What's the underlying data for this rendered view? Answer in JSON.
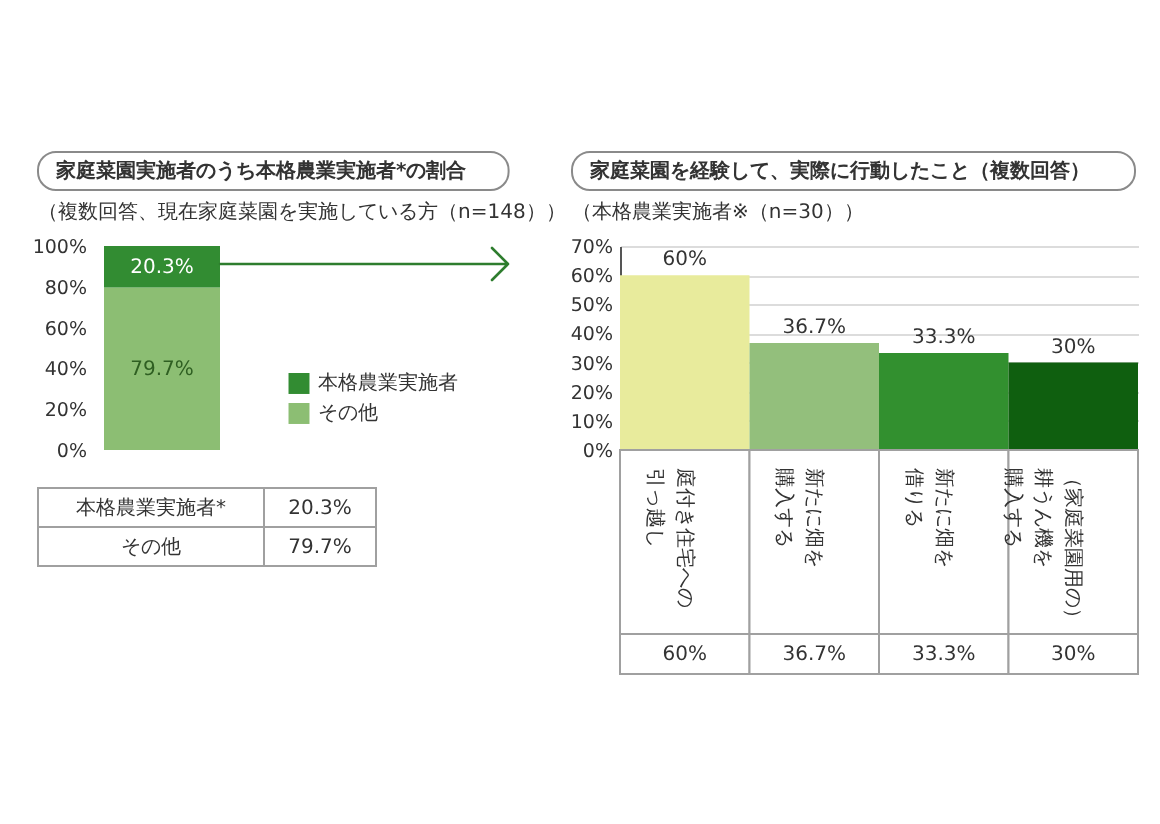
{
  "chart_data": [
    {
      "type": "bar",
      "title": "家庭菜園実施者のうち本格農業実施者*の割合",
      "subtitle": "（複数回答、現在家庭菜園を実施している方（n=148））",
      "categories": [
        null
      ],
      "stacked": true,
      "series": [
        {
          "name": "その他",
          "color": "#8cbe73",
          "values": [
            79.7
          ],
          "value_labels": [
            "79.7%"
          ]
        },
        {
          "name": "本格農業実施者",
          "color": "#328c32",
          "values": [
            20.3
          ],
          "value_labels": [
            "20.3%"
          ]
        }
      ],
      "ylim": [
        0,
        100
      ],
      "yticks": [
        {
          "value": 0,
          "label": "0%"
        },
        {
          "value": 20,
          "label": "20%"
        },
        {
          "value": 40,
          "label": "40%"
        },
        {
          "value": 60,
          "label": "60%"
        },
        {
          "value": 80,
          "label": "80%"
        },
        {
          "value": 100,
          "label": "100%"
        }
      ],
      "grid": false,
      "legend": "right",
      "annotations": [
        "本格農業実施者*",
        "その他"
      ]
    },
    {
      "type": "bar",
      "title": "家庭菜園を経験して、実際に行動したこと（複数回答）",
      "subtitle": "（本格農業実施者※（n=30））",
      "categories": [
        "庭付き住宅への引っ越し",
        "新たに畑を購入する",
        "新たに畑を借りる",
        "（家庭菜園用の）耕うん機を購入する"
      ],
      "values": [
        60,
        36.7,
        33.3,
        30
      ],
      "colors": [
        "#e8eb9c",
        "#93bf7c",
        "#32902f",
        "#0f5f0f"
      ],
      "value_labels": [
        "60%",
        "36.7%",
        "33.3%",
        "30%"
      ],
      "ylim": [
        0,
        70
      ],
      "yticks": [
        {
          "value": 0,
          "label": "0%"
        },
        {
          "value": 10,
          "label": "10%"
        },
        {
          "value": 20,
          "label": "20%"
        },
        {
          "value": 30,
          "label": "30%"
        },
        {
          "value": 40,
          "label": "40%"
        },
        {
          "value": 50,
          "label": "50%"
        },
        {
          "value": 60,
          "label": "60%"
        },
        {
          "value": 70,
          "label": "70%"
        }
      ],
      "grid": "y"
    }
  ]
}
